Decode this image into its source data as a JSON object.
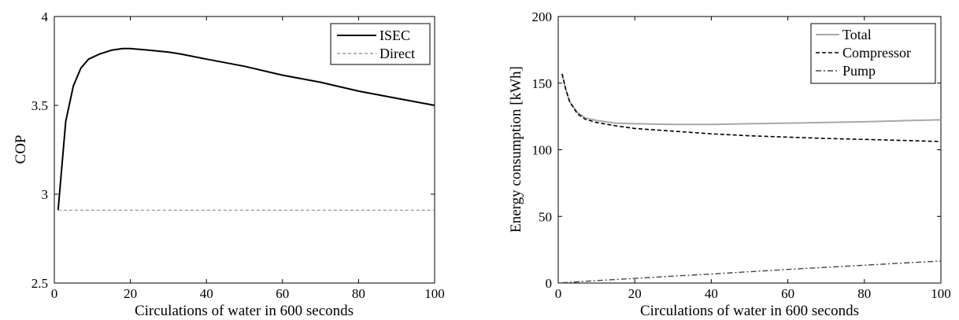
{
  "chart_data": [
    {
      "type": "line",
      "xlabel": "Circulations of water in 600 seconds",
      "ylabel": "COP",
      "xlim": [
        0,
        100
      ],
      "ylim": [
        2.5,
        4
      ],
      "xticks": [
        "0",
        "20",
        "40",
        "60",
        "80",
        "100"
      ],
      "yticks": [
        "2.5",
        "3",
        "3.5",
        "4"
      ],
      "grid": false,
      "legend_position": "top-right",
      "series": [
        {
          "name": "ISEC",
          "color": "#000000",
          "style": "solid",
          "x": [
            1,
            3,
            5,
            7,
            9,
            12,
            15,
            18,
            20,
            25,
            30,
            33,
            40,
            50,
            60,
            70,
            80,
            90,
            100
          ],
          "y": [
            2.91,
            3.41,
            3.61,
            3.71,
            3.76,
            3.79,
            3.81,
            3.82,
            3.82,
            3.81,
            3.8,
            3.79,
            3.76,
            3.72,
            3.67,
            3.63,
            3.58,
            3.54,
            3.5
          ]
        },
        {
          "name": "Direct",
          "color": "#888888",
          "style": "dashed",
          "x": [
            1,
            100
          ],
          "y": [
            2.91,
            2.91
          ]
        }
      ]
    },
    {
      "type": "line",
      "xlabel": "Circulations of water in 600 seconds",
      "ylabel": "Energy consumption [kWh]",
      "xlim": [
        0,
        100
      ],
      "ylim": [
        0,
        200
      ],
      "xticks": [
        "0",
        "20",
        "40",
        "60",
        "80",
        "100"
      ],
      "yticks": [
        "0",
        "50",
        "100",
        "150",
        "200"
      ],
      "grid": false,
      "legend_position": "top-right",
      "series": [
        {
          "name": "Total",
          "color": "#a8a8a8",
          "style": "solid",
          "x": [
            1,
            2,
            3,
            5,
            7,
            10,
            15,
            20,
            30,
            40,
            50,
            60,
            70,
            80,
            90,
            100
          ],
          "y": [
            157,
            145,
            136,
            128,
            124,
            122,
            120,
            119.5,
            119,
            119,
            119.5,
            120,
            120.5,
            121,
            121.8,
            122.5
          ]
        },
        {
          "name": "Compressor",
          "color": "#000000",
          "style": "dashed",
          "x": [
            1,
            2,
            3,
            5,
            7,
            10,
            15,
            20,
            30,
            40,
            50,
            60,
            70,
            80,
            90,
            100
          ],
          "y": [
            157,
            145,
            136,
            127,
            123,
            120.5,
            118,
            116,
            114,
            112,
            110.5,
            109.5,
            108.5,
            107.8,
            107,
            106.2
          ]
        },
        {
          "name": "Pump",
          "color": "#444444",
          "style": "dashdot",
          "x": [
            1,
            10,
            20,
            30,
            40,
            50,
            60,
            70,
            80,
            90,
            100
          ],
          "y": [
            0.2,
            1.8,
            3.5,
            5.2,
            6.8,
            8.5,
            10.2,
            11.8,
            13.4,
            15.0,
            16.5
          ]
        }
      ]
    }
  ]
}
